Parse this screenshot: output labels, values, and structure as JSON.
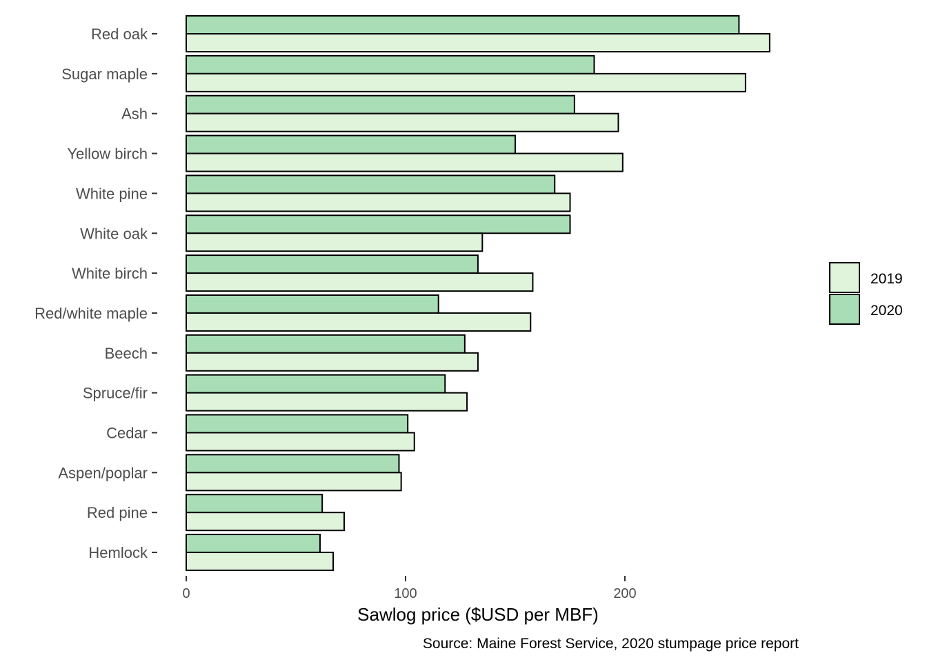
{
  "chart_data": {
    "type": "bar",
    "orientation": "horizontal",
    "categories": [
      "Red oak",
      "Sugar maple",
      "Ash",
      "Yellow birch",
      "White pine",
      "White oak",
      "White birch",
      "Red/white maple",
      "Beech",
      "Spruce/fir",
      "Cedar",
      "Aspen/poplar",
      "Red pine",
      "Hemlock"
    ],
    "series": [
      {
        "name": "2019",
        "color": "#e0f3db",
        "values": [
          266,
          255,
          197,
          199,
          175,
          135,
          158,
          157,
          133,
          128,
          104,
          98,
          72,
          67
        ]
      },
      {
        "name": "2020",
        "color": "#a8ddb5",
        "values": [
          252,
          186,
          177,
          150,
          168,
          175,
          133,
          115,
          127,
          118,
          101,
          97,
          62,
          61
        ]
      }
    ],
    "xlabel": "Sawlog price ($USD per MBF)",
    "ylabel": "",
    "x_ticks": [
      0,
      100,
      200
    ],
    "xlim": [
      0,
      280
    ],
    "caption": "Source: Maine Forest Service, 2020 stumpage price report",
    "legend": [
      "2019",
      "2020"
    ],
    "grid": false,
    "legend_position": "right"
  }
}
